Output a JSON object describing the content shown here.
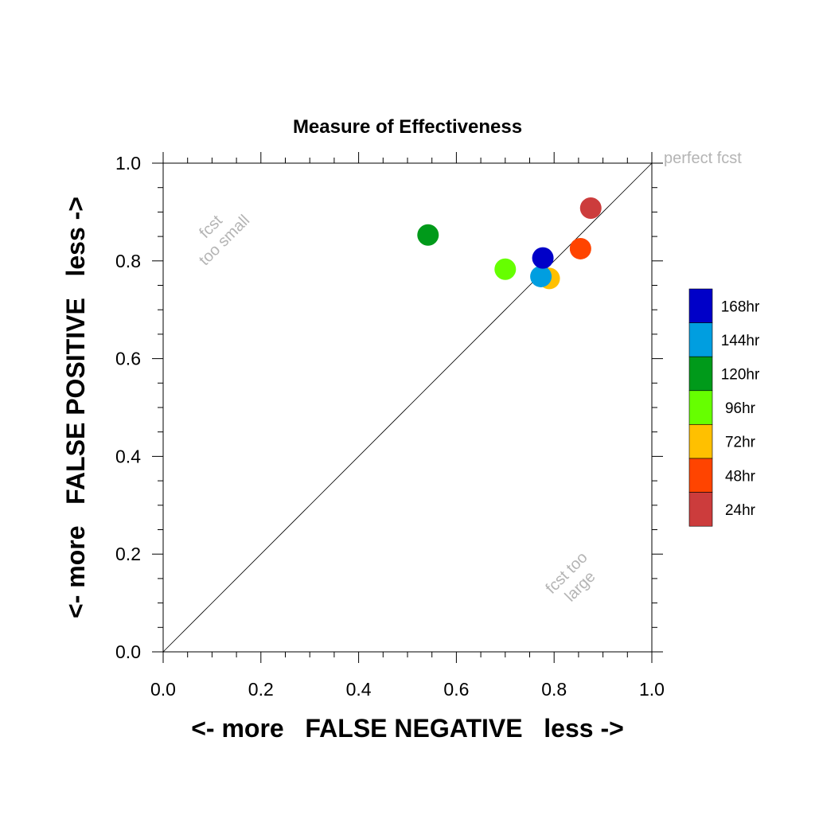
{
  "chart_data": {
    "type": "scatter",
    "title": "Measure of Effectiveness",
    "xlabel": "<- more   FALSE NEGATIVE   less ->",
    "ylabel": "<- more   FALSE POSITIVE   less ->",
    "xlim": [
      0.0,
      1.0
    ],
    "ylim": [
      0.0,
      1.0
    ],
    "xticks": [
      "0.0",
      "0.2",
      "0.4",
      "0.6",
      "0.8",
      "1.0"
    ],
    "yticks": [
      "0.0",
      "0.2",
      "0.4",
      "0.6",
      "0.8",
      "1.0"
    ],
    "grid": false,
    "diagonal_reference_line": true,
    "annotations": {
      "perfect": "perfect fcst",
      "too_small": [
        "fcst",
        "too small"
      ],
      "too_large": [
        "fcst too",
        "large"
      ]
    },
    "legend_position": "right",
    "series": [
      {
        "name": "24hr",
        "color": "#cc3c3c",
        "x": 0.875,
        "y": 0.908
      },
      {
        "name": "48hr",
        "color": "#ff4400",
        "x": 0.854,
        "y": 0.825
      },
      {
        "name": "72hr",
        "color": "#ffc000",
        "x": 0.79,
        "y": 0.764
      },
      {
        "name": "96hr",
        "color": "#66ff00",
        "x": 0.7,
        "y": 0.783
      },
      {
        "name": "120hr",
        "color": "#009a1a",
        "x": 0.542,
        "y": 0.853
      },
      {
        "name": "144hr",
        "color": "#009ee0",
        "x": 0.773,
        "y": 0.768
      },
      {
        "name": "168hr",
        "color": "#0000c8",
        "x": 0.777,
        "y": 0.806
      }
    ],
    "legend_order": [
      "168hr",
      "144hr",
      "120hr",
      "96hr",
      "72hr",
      "48hr",
      "24hr"
    ]
  }
}
